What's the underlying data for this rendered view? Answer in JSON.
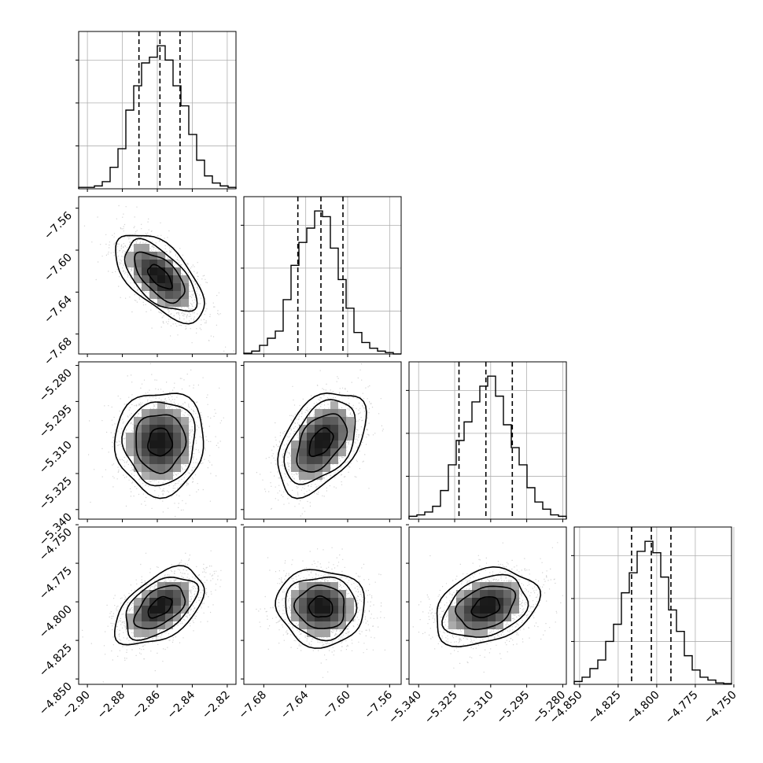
{
  "chart_data": {
    "type": "corner",
    "x_ticks": [
      [
        "−2.90",
        "−2.88",
        "−2.86",
        "−2.84",
        "−2.82"
      ],
      [
        "−7.68",
        "−7.64",
        "−7.60",
        "−7.56"
      ],
      [
        "−5.340",
        "−5.325",
        "−5.310",
        "−5.295",
        "−5.280"
      ],
      [
        "−4.850",
        "−4.825",
        "−4.800",
        "−4.775",
        "−4.750"
      ]
    ],
    "y_ticks": [
      [],
      [
        "−7.56",
        "−7.60",
        "−7.64",
        "−7.68"
      ],
      [
        "−5.280",
        "−5.295",
        "−5.310",
        "−5.325",
        "−5.340"
      ],
      [
        "−4.750",
        "−4.775",
        "−4.800",
        "−4.825",
        "−4.850"
      ]
    ],
    "parameters": [
      {
        "ticks": [
          -2.9,
          -2.88,
          -2.86,
          -2.84,
          -2.82
        ],
        "range": [
          -2.905,
          -2.815
        ],
        "mean": -2.8585,
        "q16": -2.8705,
        "q84": -2.847,
        "hist": [
          0.01,
          0.01,
          0.02,
          0.05,
          0.15,
          0.28,
          0.55,
          0.72,
          0.88,
          0.92,
          1.0,
          0.9,
          0.72,
          0.58,
          0.38,
          0.2,
          0.09,
          0.04,
          0.02,
          0.01
        ]
      },
      {
        "ticks": [
          -7.68,
          -7.64,
          -7.6,
          -7.56
        ],
        "range": [
          -7.699,
          -7.549
        ],
        "mean": -7.6255,
        "q16": -7.6475,
        "q84": -7.6045,
        "hist": [
          0.005,
          0.02,
          0.06,
          0.11,
          0.16,
          0.38,
          0.62,
          0.78,
          0.88,
          1.0,
          0.96,
          0.74,
          0.52,
          0.32,
          0.15,
          0.08,
          0.04,
          0.02,
          0.01,
          0.0
        ]
      },
      {
        "ticks": [
          -5.34,
          -5.325,
          -5.31,
          -5.295,
          -5.28
        ],
        "range": [
          -5.344,
          -5.2785
        ],
        "mean": -5.312,
        "q16": -5.3232,
        "q84": -5.301,
        "hist": [
          0.02,
          0.03,
          0.05,
          0.09,
          0.2,
          0.38,
          0.55,
          0.68,
          0.82,
          0.93,
          1.0,
          0.86,
          0.66,
          0.5,
          0.38,
          0.22,
          0.12,
          0.07,
          0.03,
          0.02
        ]
      },
      {
        "ticks": [
          -4.85,
          -4.825,
          -4.8,
          -4.775,
          -4.75
        ],
        "range": [
          -4.8535,
          -4.7515
        ],
        "mean": -4.8035,
        "q16": -4.8163,
        "q84": -4.7908,
        "hist": [
          0.02,
          0.05,
          0.11,
          0.17,
          0.3,
          0.42,
          0.64,
          0.78,
          0.93,
          1.0,
          0.92,
          0.75,
          0.52,
          0.37,
          0.2,
          0.1,
          0.05,
          0.03,
          0.01,
          0.005
        ]
      }
    ],
    "pairs": [
      {
        "row": 1,
        "col": 0,
        "center": [
          -2.8585,
          -7.6255
        ],
        "sigma": [
          0.0124,
          0.0205
        ],
        "rho": -0.6
      },
      {
        "row": 2,
        "col": 0,
        "center": [
          -2.8585,
          -5.312
        ],
        "sigma": [
          0.0124,
          0.0105
        ],
        "rho": 0.02
      },
      {
        "row": 2,
        "col": 1,
        "center": [
          -7.6255,
          -5.312
        ],
        "sigma": [
          0.0205,
          0.0105
        ],
        "rho": 0.45
      },
      {
        "row": 3,
        "col": 0,
        "center": [
          -2.8585,
          -4.8035
        ],
        "sigma": [
          0.0124,
          0.0122
        ],
        "rho": 0.5
      },
      {
        "row": 3,
        "col": 1,
        "center": [
          -7.6255,
          -4.8035
        ],
        "sigma": [
          0.0205,
          0.0122
        ],
        "rho": -0.04
      },
      {
        "row": 3,
        "col": 2,
        "center": [
          -5.312,
          -4.8035
        ],
        "sigma": [
          0.0105,
          0.0122
        ],
        "rho": 0.3
      }
    ],
    "histogram_color": "#000000",
    "scatter_color": "#9e9e9e",
    "grid": true,
    "quantile_lines": "dashed"
  }
}
